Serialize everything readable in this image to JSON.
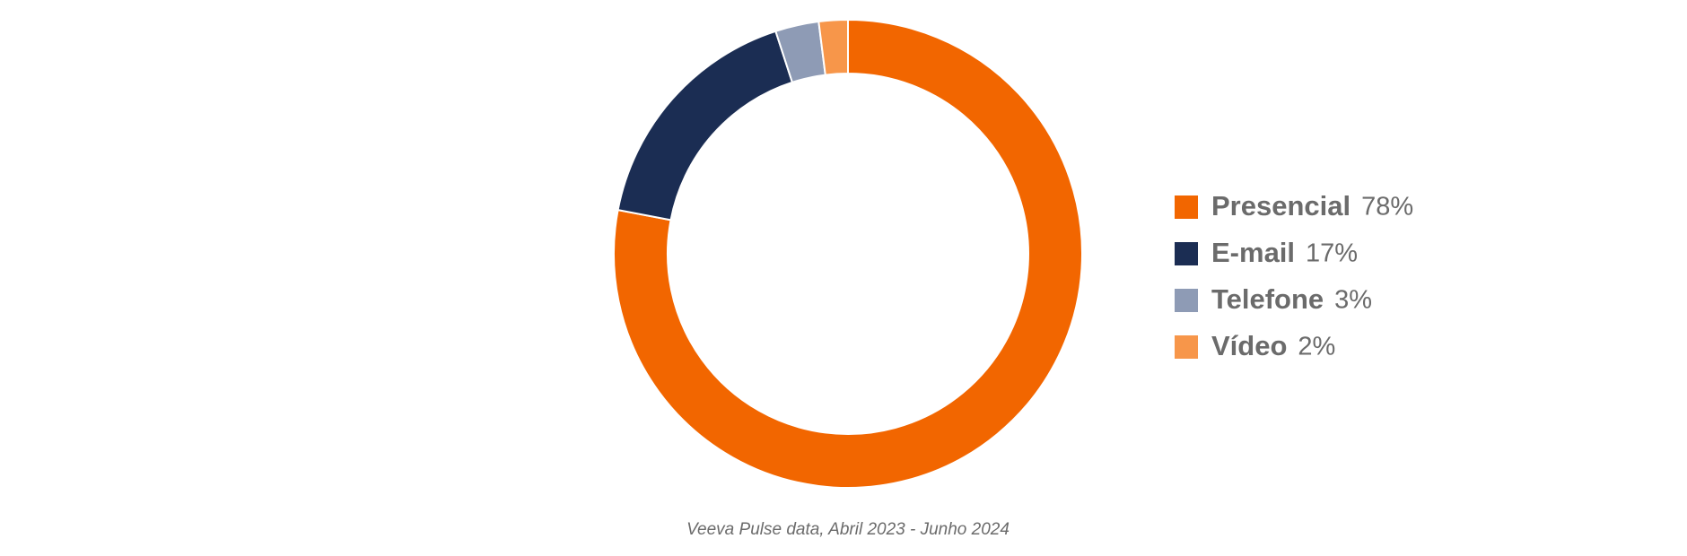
{
  "chart_data": {
    "type": "pie",
    "categories": [
      "Presencial",
      "E-mail",
      "Telefone",
      "Vídeo"
    ],
    "values": [
      78,
      17,
      3,
      2
    ],
    "value_labels": [
      "78%",
      "17%",
      "3%",
      "2%"
    ],
    "colors": [
      "#f26600",
      "#1b2d53",
      "#8e9bb5",
      "#f7964a"
    ],
    "legend": "right",
    "source": "Veeva Pulse data, Abril 2023 - Junho 2024"
  }
}
